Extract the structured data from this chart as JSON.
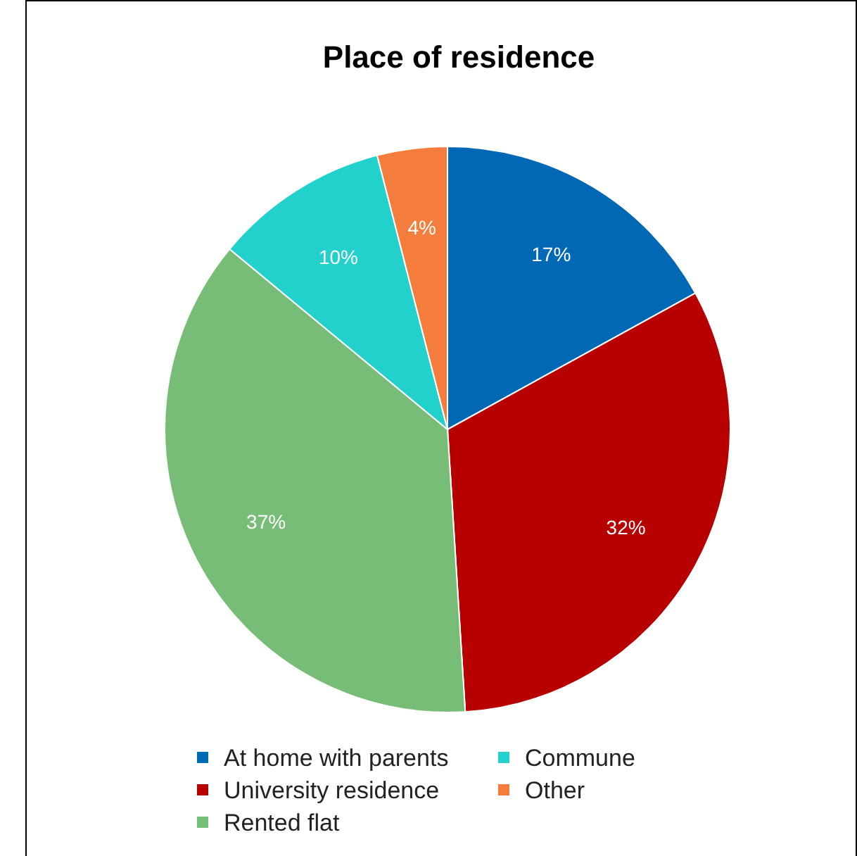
{
  "chart_data": {
    "type": "pie",
    "title": "Place of residence",
    "categories": [
      "At home with parents",
      "University residence",
      "Rented flat",
      "Commune",
      "Other"
    ],
    "values": [
      17,
      32,
      37,
      10,
      4
    ],
    "value_labels": [
      "17%",
      "32%",
      "37%",
      "10%",
      "4%"
    ],
    "colors": [
      "#0068b5",
      "#b80000",
      "#77bd77",
      "#22d0cc",
      "#f47c3c"
    ],
    "legend": "bottom"
  }
}
